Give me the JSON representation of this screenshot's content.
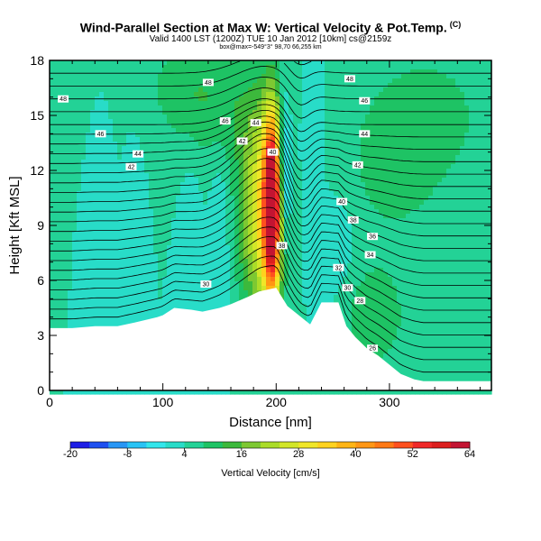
{
  "header": {
    "title": "Wind-Parallel Section at Max W: Vertical Velocity & Pot.Temp.",
    "title_mark": "(C)",
    "subtitle": "Valid 1400 LST (1200Z) TUE 10 Jan 2012 [10km] cs@2159z",
    "info_line": "box@max=-549°3° 98,70 66,255 km"
  },
  "chart_data": {
    "type": "heatmap",
    "xlabel": "Distance [nm]",
    "ylabel": "Height [Kft MSL]",
    "xlim": [
      0,
      390
    ],
    "ylim": [
      0,
      18
    ],
    "x_ticks": [
      0,
      100,
      200,
      300
    ],
    "y_ticks": [
      0,
      3,
      6,
      9,
      12,
      15,
      18
    ],
    "colorbar": {
      "label": "Vertical Velocity [cm/s]",
      "tick_labels": [
        -20,
        -8,
        4,
        16,
        28,
        40,
        52,
        64
      ],
      "levels": [
        -20,
        -16,
        -12,
        -8,
        -4,
        0,
        4,
        8,
        12,
        16,
        20,
        24,
        28,
        32,
        36,
        40,
        44,
        48,
        52,
        56,
        60,
        64
      ],
      "colors": [
        "#1e1ee6",
        "#1e50f0",
        "#2896f5",
        "#28c3f5",
        "#32e6eb",
        "#28dcc8",
        "#23d296",
        "#1ec364",
        "#3cb93c",
        "#7dc832",
        "#aadc28",
        "#d2e628",
        "#f0e628",
        "#ffd21e",
        "#ffb414",
        "#ff9614",
        "#ff7814",
        "#ff501e",
        "#f02828",
        "#dc1e1e",
        "#c31432"
      ]
    },
    "background_field": 4,
    "terrain": [
      [
        0,
        3.4
      ],
      [
        20,
        3.4
      ],
      [
        40,
        3.5
      ],
      [
        60,
        3.5
      ],
      [
        75,
        3.7
      ],
      [
        95,
        4.0
      ],
      [
        100,
        4.1
      ],
      [
        110,
        4.5
      ],
      [
        125,
        4.4
      ],
      [
        135,
        4.3
      ],
      [
        150,
        4.5
      ],
      [
        160,
        4.7
      ],
      [
        175,
        5.1
      ],
      [
        185,
        5.4
      ],
      [
        200,
        5.6
      ],
      [
        210,
        4.6
      ],
      [
        220,
        4.1
      ],
      [
        230,
        3.6
      ],
      [
        240,
        4.8
      ],
      [
        255,
        4.8
      ],
      [
        262,
        3.5
      ],
      [
        270,
        2.9
      ],
      [
        280,
        2.3
      ],
      [
        290,
        1.9
      ],
      [
        300,
        1.4
      ],
      [
        310,
        0.9
      ],
      [
        322,
        0.6
      ],
      [
        330,
        0.5
      ],
      [
        390,
        0.5
      ]
    ],
    "vertical_velocity_features": [
      {
        "x": 196,
        "y": 10.0,
        "sx": 5,
        "sy": 3.3,
        "value": 60
      },
      {
        "x": 190,
        "y": 9.6,
        "sx": 12,
        "sy": 3.8,
        "value": 22
      },
      {
        "x": 176,
        "y": 9.0,
        "sx": 11,
        "sy": 3.6,
        "value": 6
      },
      {
        "x": 208,
        "y": 12.0,
        "sx": 3.5,
        "sy": 2.5,
        "value": -16
      },
      {
        "x": 75,
        "y": 8.0,
        "sx": 5,
        "sy": 3.2,
        "value": -4
      },
      {
        "x": 48,
        "y": 8.2,
        "sx": 5,
        "sy": 3.0,
        "value": -3
      },
      {
        "x": 150,
        "y": 8.5,
        "sx": 6,
        "sy": 4.0,
        "value": -4
      },
      {
        "x": 125,
        "y": 8.0,
        "sx": 6,
        "sy": 3.5,
        "value": -3
      },
      {
        "x": 165,
        "y": 15.0,
        "sx": 30,
        "sy": 2.5,
        "value": 6
      },
      {
        "x": 120,
        "y": 16.5,
        "sx": 25,
        "sy": 2.0,
        "value": 6
      },
      {
        "x": 300,
        "y": 12.0,
        "sx": 30,
        "sy": 3.0,
        "value": 5
      },
      {
        "x": 285,
        "y": 4.0,
        "sx": 20,
        "sy": 2.0,
        "value": 8
      },
      {
        "x": 340,
        "y": 15.0,
        "sx": 40,
        "sy": 3.0,
        "value": 5
      },
      {
        "x": 255,
        "y": 7.5,
        "sx": 15,
        "sy": 2.5,
        "value": -3
      },
      {
        "x": 230,
        "y": 14.0,
        "sx": 8,
        "sy": 3.0,
        "value": -3
      }
    ],
    "isentrope_labels": [
      {
        "text": "48",
        "x": 12,
        "y": 15.9
      },
      {
        "text": "48",
        "x": 140,
        "y": 16.8
      },
      {
        "text": "46",
        "x": 155,
        "y": 14.7
      },
      {
        "text": "44",
        "x": 182,
        "y": 14.6
      },
      {
        "text": "42",
        "x": 170,
        "y": 13.6
      },
      {
        "text": "46",
        "x": 45,
        "y": 14.0
      },
      {
        "text": "44",
        "x": 78,
        "y": 12.9
      },
      {
        "text": "42",
        "x": 72,
        "y": 12.2
      },
      {
        "text": "40",
        "x": 197,
        "y": 13.0
      },
      {
        "text": "38",
        "x": 205,
        "y": 7.9
      },
      {
        "text": "48",
        "x": 265,
        "y": 17.0
      },
      {
        "text": "46",
        "x": 278,
        "y": 15.8
      },
      {
        "text": "44",
        "x": 278,
        "y": 14.0
      },
      {
        "text": "42",
        "x": 272,
        "y": 12.3
      },
      {
        "text": "40",
        "x": 258,
        "y": 10.3
      },
      {
        "text": "38",
        "x": 268,
        "y": 9.3
      },
      {
        "text": "36",
        "x": 285,
        "y": 8.4
      },
      {
        "text": "34",
        "x": 283,
        "y": 7.4
      },
      {
        "text": "32",
        "x": 255,
        "y": 6.7
      },
      {
        "text": "30",
        "x": 263,
        "y": 5.6
      },
      {
        "text": "28",
        "x": 274,
        "y": 4.9
      },
      {
        "text": "26",
        "x": 285,
        "y": 2.3
      },
      {
        "text": "30",
        "x": 138,
        "y": 5.8
      }
    ]
  }
}
